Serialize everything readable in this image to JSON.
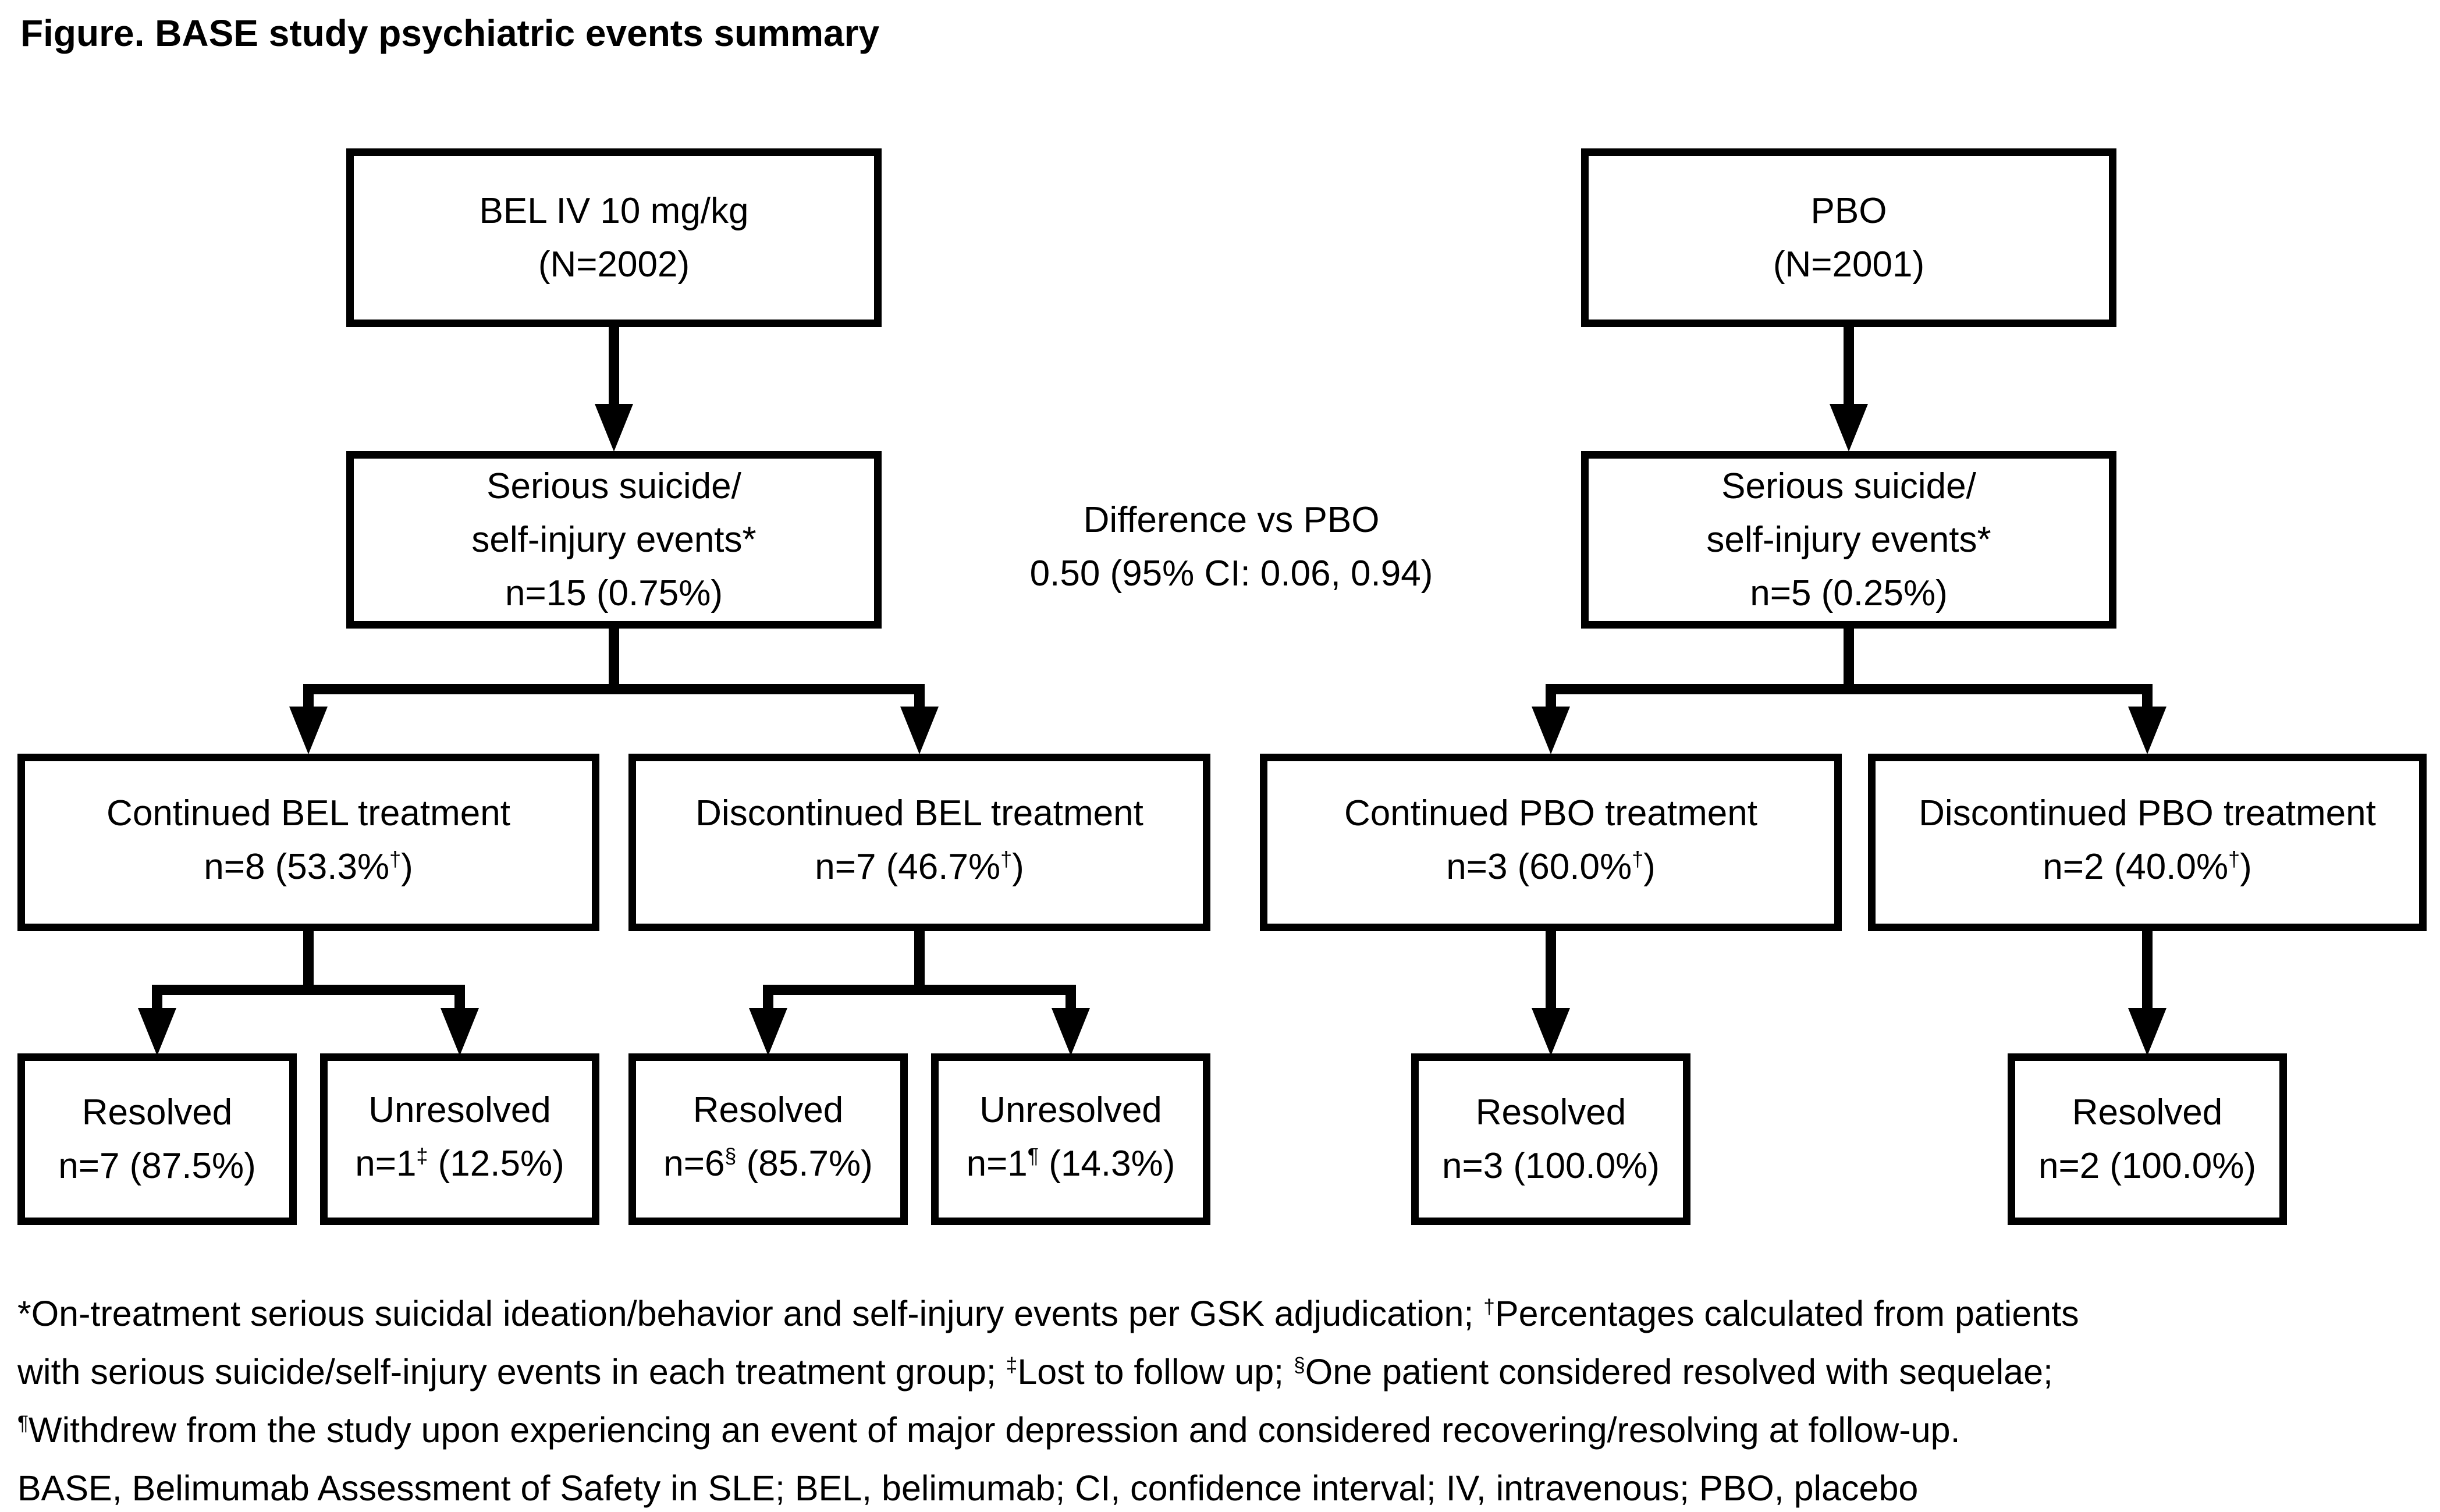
{
  "page": {
    "background": "#ffffff",
    "ink": "#000000"
  },
  "title": "Figure. BASE study psychiatric events summary",
  "diff_note": {
    "line1": "Difference vs PBO",
    "line2": "0.50 (95% CI: 0.06, 0.94)"
  },
  "boxes": {
    "bel_arm": {
      "lines": [
        [
          {
            "t": "BEL IV 10 mg/kg"
          }
        ],
        [
          {
            "t": "(N=2002)"
          }
        ]
      ]
    },
    "pbo_arm": {
      "lines": [
        [
          {
            "t": "PBO"
          }
        ],
        [
          {
            "t": "(N=2001)"
          }
        ]
      ]
    },
    "bel_events": {
      "lines": [
        [
          {
            "t": "Serious suicide/"
          }
        ],
        [
          {
            "t": "self-injury events*"
          }
        ],
        [
          {
            "t": "n=15 (0.75%)"
          }
        ]
      ]
    },
    "pbo_events": {
      "lines": [
        [
          {
            "t": "Serious suicide/"
          }
        ],
        [
          {
            "t": "self-injury events*"
          }
        ],
        [
          {
            "t": "n=5 (0.25%)"
          }
        ]
      ]
    },
    "bel_continued": {
      "lines": [
        [
          {
            "t": "Continued BEL treatment"
          }
        ],
        [
          {
            "t": "n=8 (53.3%"
          },
          {
            "t": "†",
            "sup": true
          },
          {
            "t": ")"
          }
        ]
      ]
    },
    "bel_discontinued": {
      "lines": [
        [
          {
            "t": "Discontinued BEL treatment"
          }
        ],
        [
          {
            "t": "n=7 (46.7%"
          },
          {
            "t": "†",
            "sup": true
          },
          {
            "t": ")"
          }
        ]
      ]
    },
    "pbo_continued": {
      "lines": [
        [
          {
            "t": "Continued PBO treatment"
          }
        ],
        [
          {
            "t": "n=3 (60.0%"
          },
          {
            "t": "†",
            "sup": true
          },
          {
            "t": ")"
          }
        ]
      ]
    },
    "pbo_discontinued": {
      "lines": [
        [
          {
            "t": "Discontinued PBO treatment"
          }
        ],
        [
          {
            "t": "n=2 (40.0%"
          },
          {
            "t": "†",
            "sup": true
          },
          {
            "t": ")"
          }
        ]
      ]
    },
    "bel_cont_resolved": {
      "lines": [
        [
          {
            "t": "Resolved"
          }
        ],
        [
          {
            "t": "n=7 (87.5%)"
          }
        ]
      ]
    },
    "bel_cont_unresolved": {
      "lines": [
        [
          {
            "t": "Unresolved"
          }
        ],
        [
          {
            "t": "n=1"
          },
          {
            "t": "‡",
            "sup": true
          },
          {
            "t": " (12.5%)"
          }
        ]
      ]
    },
    "bel_disc_resolved": {
      "lines": [
        [
          {
            "t": "Resolved"
          }
        ],
        [
          {
            "t": "n=6"
          },
          {
            "t": "§",
            "sup": true
          },
          {
            "t": " (85.7%)"
          }
        ]
      ]
    },
    "bel_disc_unresolved": {
      "lines": [
        [
          {
            "t": "Unresolved"
          }
        ],
        [
          {
            "t": "n=1"
          },
          {
            "t": "¶",
            "sup": true
          },
          {
            "t": " (14.3%)"
          }
        ]
      ]
    },
    "pbo_cont_resolved": {
      "lines": [
        [
          {
            "t": "Resolved"
          }
        ],
        [
          {
            "t": "n=3 (100.0%)"
          }
        ]
      ]
    },
    "pbo_disc_resolved": {
      "lines": [
        [
          {
            "t": "Resolved"
          }
        ],
        [
          {
            "t": "n=2 (100.0%)"
          }
        ]
      ]
    }
  },
  "footnotes": {
    "lines": [
      [
        {
          "t": "*On-treatment serious suicidal ideation/behavior and self-injury events per GSK adjudication; "
        },
        {
          "t": "†",
          "sup": true
        },
        {
          "t": "Percentages calculated from patients"
        }
      ],
      [
        {
          "t": "with serious suicide/self-injury events in each treatment group; "
        },
        {
          "t": "‡",
          "sup": true
        },
        {
          "t": "Lost to follow up; "
        },
        {
          "t": "§",
          "sup": true
        },
        {
          "t": "One patient considered resolved with sequelae;"
        }
      ],
      [
        {
          "t": "¶",
          "sup": true
        },
        {
          "t": "Withdrew from the study upon experiencing an event of major depression and considered recovering/resolving at follow-up."
        }
      ],
      [
        {
          "t": "BASE, Belimumab Assessment of Safety in SLE; BEL, belimumab; CI, confidence interval; IV, intravenous; PBO, placebo"
        }
      ]
    ]
  }
}
